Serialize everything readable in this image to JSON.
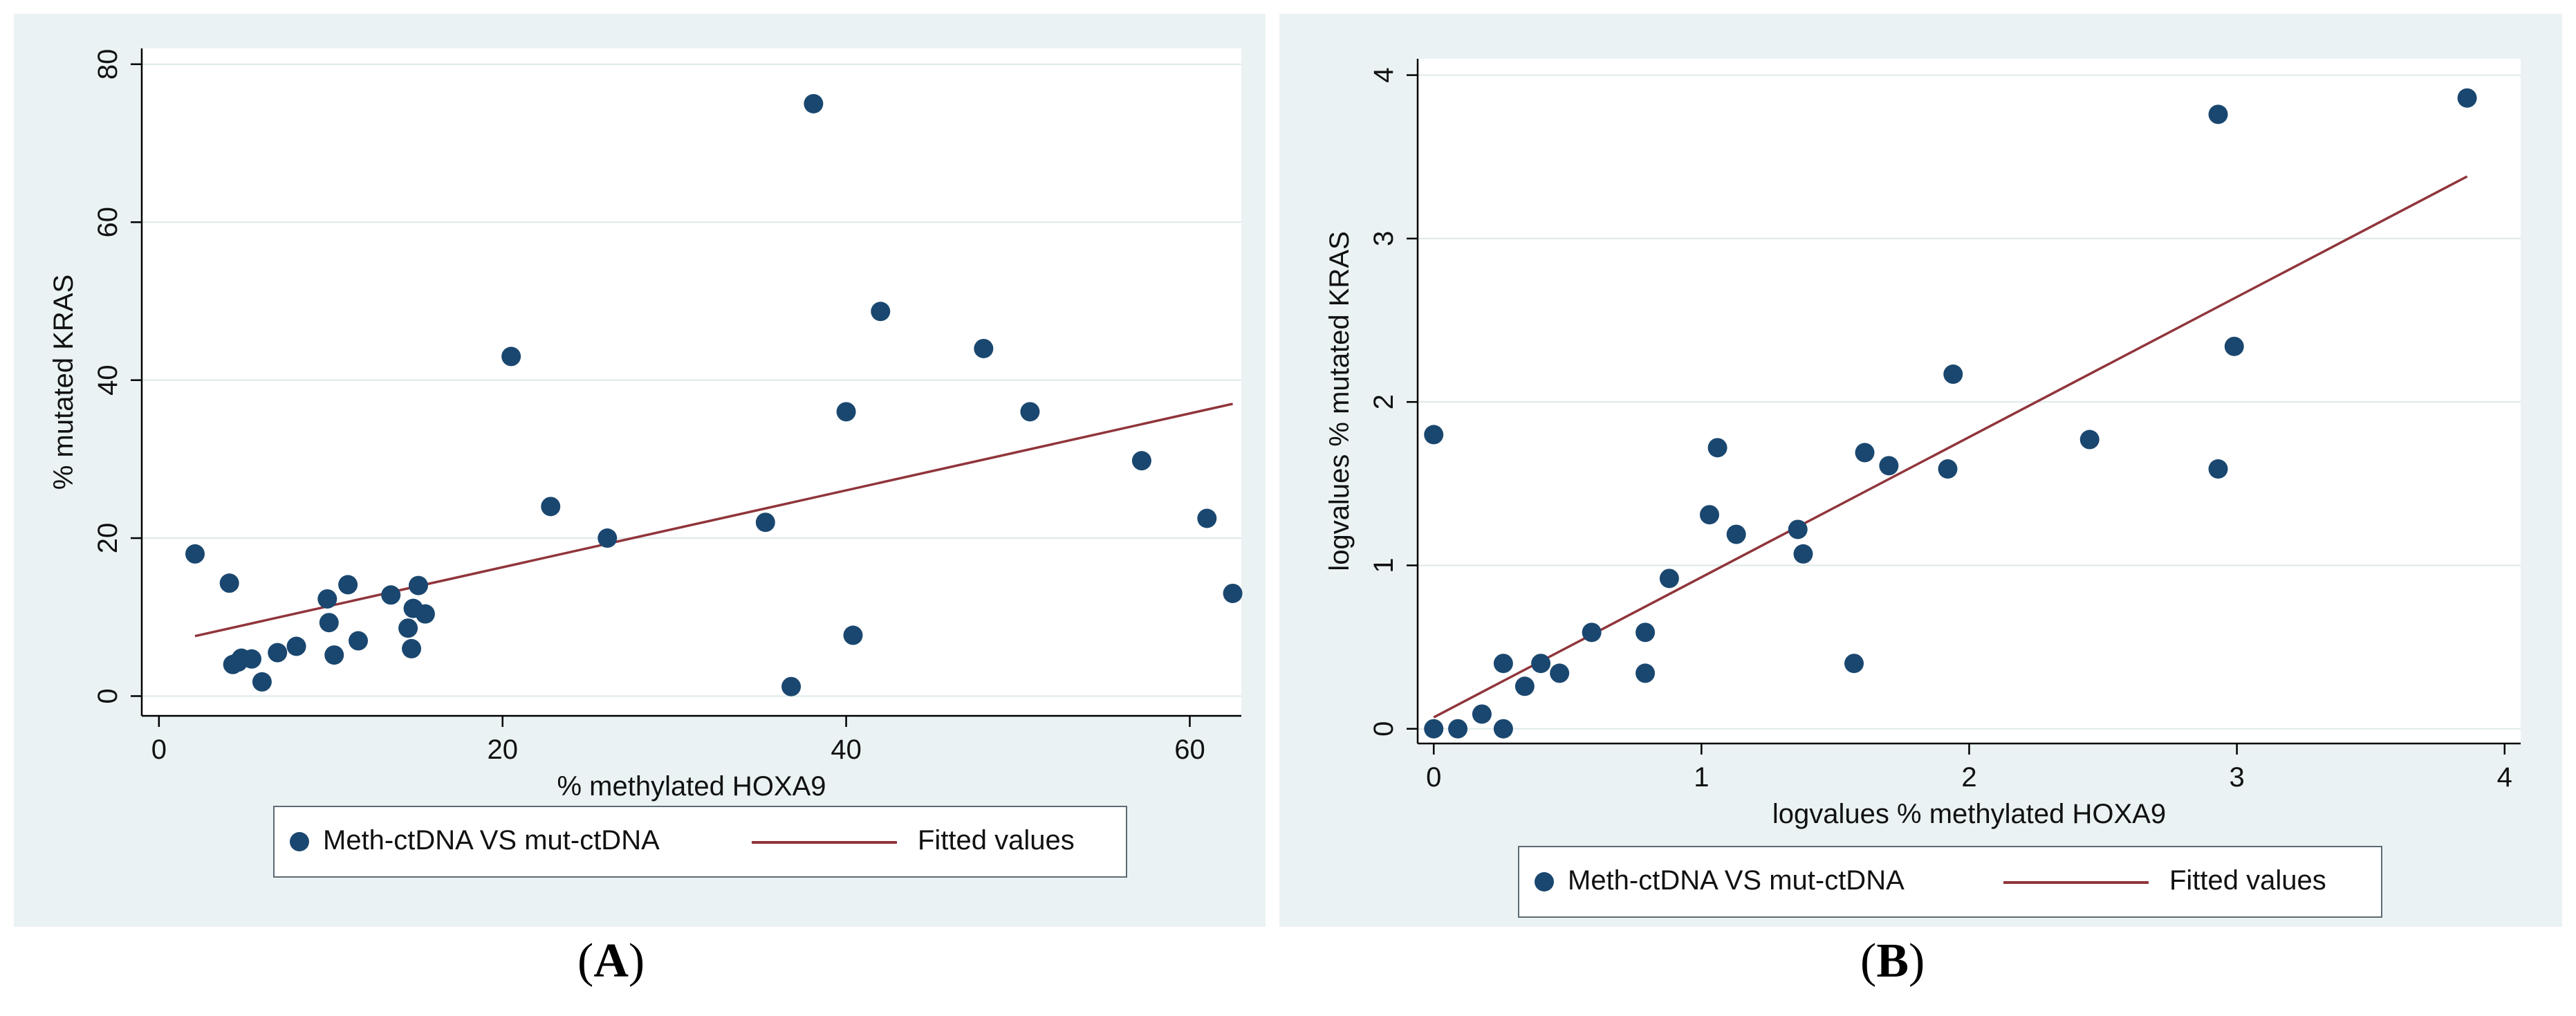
{
  "colors": {
    "panel_bg": "#eaf2f3",
    "marker": "#1a476f",
    "fit_line": "#90353b",
    "axis": "#000000",
    "grid": "#dfe8e9"
  },
  "chart_data": [
    {
      "id": "A",
      "type": "scatter",
      "caption": {
        "open": "(",
        "label": "A",
        "close": ")"
      },
      "xlabel": "% methylated HOXA9",
      "ylabel": "% mutated KRAS",
      "xlim": [
        -1,
        63
      ],
      "ylim": [
        -2.5,
        82
      ],
      "xticks": [
        0,
        20,
        40,
        60
      ],
      "yticks": [
        0,
        20,
        40,
        60,
        80
      ],
      "grid": true,
      "legend_position": "bottom",
      "series": [
        {
          "name": "Meth-ctDNA VS mut-ctDNA",
          "kind": "points",
          "x": [
            2.1,
            4.1,
            4.3,
            4.6,
            4.8,
            5.4,
            6.0,
            6.9,
            8.0,
            9.8,
            9.9,
            10.2,
            11.0,
            11.6,
            13.5,
            14.5,
            14.7,
            14.8,
            15.1,
            15.5,
            20.5,
            22.8,
            26.1,
            35.3,
            36.8,
            38.1,
            40.0,
            40.4,
            42.0,
            48.0,
            50.7,
            57.2,
            61.0,
            62.5
          ],
          "y": [
            18,
            14.3,
            4.0,
            4.3,
            4.8,
            4.7,
            1.8,
            5.5,
            6.3,
            12.3,
            9.3,
            5.2,
            14.1,
            7.0,
            12.8,
            8.6,
            6.0,
            11.1,
            14.0,
            10.4,
            43,
            24,
            20,
            22,
            1.2,
            75,
            36,
            7.7,
            48.7,
            44,
            36,
            29.8,
            22.5,
            13
          ]
        },
        {
          "name": "Fitted values",
          "kind": "line",
          "x": [
            2.1,
            62.5
          ],
          "y": [
            7.6,
            37.0
          ]
        }
      ]
    },
    {
      "id": "B",
      "type": "scatter",
      "caption": {
        "open": "(",
        "label": "B",
        "close": ")"
      },
      "xlabel": "logvalues % methylated HOXA9",
      "ylabel": "logvalues % mutated KRAS",
      "xlim": [
        -0.06,
        4.06
      ],
      "ylim": [
        -0.09,
        4.1
      ],
      "xticks": [
        0,
        1,
        2,
        3,
        4
      ],
      "yticks": [
        0,
        1,
        2,
        3,
        4
      ],
      "grid": true,
      "legend_position": "bottom",
      "series": [
        {
          "name": "Meth-ctDNA VS mut-ctDNA",
          "kind": "points",
          "x": [
            0,
            0,
            0.09,
            0.18,
            0.26,
            0.26,
            0.34,
            0.4,
            0.47,
            0.59,
            0.79,
            0.79,
            0.88,
            1.03,
            1.06,
            1.13,
            1.36,
            1.38,
            1.57,
            1.61,
            1.7,
            1.92,
            1.94,
            2.45,
            2.93,
            2.93,
            2.99,
            3.86
          ],
          "y": [
            0,
            1.8,
            0,
            0.09,
            0,
            0.4,
            0.26,
            0.4,
            0.34,
            0.59,
            0.59,
            0.34,
            0.92,
            1.31,
            1.72,
            1.19,
            1.22,
            1.07,
            0.4,
            1.69,
            1.61,
            1.59,
            2.17,
            1.77,
            1.59,
            3.76,
            2.34,
            3.86
          ]
        },
        {
          "name": "Fitted values",
          "kind": "line",
          "x": [
            0,
            3.86
          ],
          "y": [
            0.07,
            3.38
          ]
        }
      ]
    }
  ]
}
